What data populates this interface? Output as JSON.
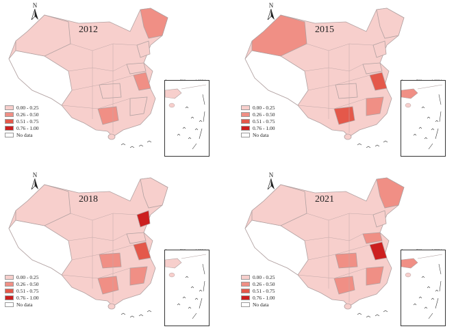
{
  "panels": [
    {
      "year": "2012",
      "colors": {
        "nw": "#f7cfcc",
        "ne": "#f08f85",
        "shandong": "#f7cfcc",
        "jiangsu": "#f08f85",
        "liaoning": "#f7cfcc",
        "south": "#f08f85",
        "hubei": "#f7cfcc",
        "fujian": "#f7cfcc",
        "inset": "#f7cfcc"
      }
    },
    {
      "year": "2015",
      "colors": {
        "nw": "#f08f85",
        "ne": "#f7cfcc",
        "shandong": "#f7cfcc",
        "jiangsu": "#e4584a",
        "liaoning": "#f7cfcc",
        "south": "#e4584a",
        "hubei": "#f7cfcc",
        "fujian": "#f08f85",
        "inset": "#f08f85"
      }
    },
    {
      "year": "2018",
      "colors": {
        "nw": "#f7cfcc",
        "ne": "#f7cfcc",
        "shandong": "#f7cfcc",
        "jiangsu": "#e4584a",
        "liaoning": "#cc1f1f",
        "south": "#f08f85",
        "hubei": "#f08f85",
        "fujian": "#f08f85",
        "inset": "#f7cfcc"
      }
    },
    {
      "year": "2021",
      "colors": {
        "nw": "#f7cfcc",
        "ne": "#f08f85",
        "shandong": "#f08f85",
        "jiangsu": "#cc1f1f",
        "liaoning": "#f7cfcc",
        "south": "#f08f85",
        "hubei": "#f08f85",
        "fujian": "#f08f85",
        "inset": "#f08f85"
      }
    }
  ],
  "legend": [
    {
      "label": "0.00 - 0.25",
      "color": "#f7cfcc"
    },
    {
      "label": "0.26 - 0.50",
      "color": "#f08f85"
    },
    {
      "label": "0.51 - 0.75",
      "color": "#e4584a"
    },
    {
      "label": "0.76 - 1.00",
      "color": "#cc1f1f"
    },
    {
      "label": "No data",
      "color": "#ffffff"
    }
  ],
  "north_label": "N",
  "scale": {
    "ticks": [
      "0",
      "500",
      "1,000 km"
    ]
  }
}
